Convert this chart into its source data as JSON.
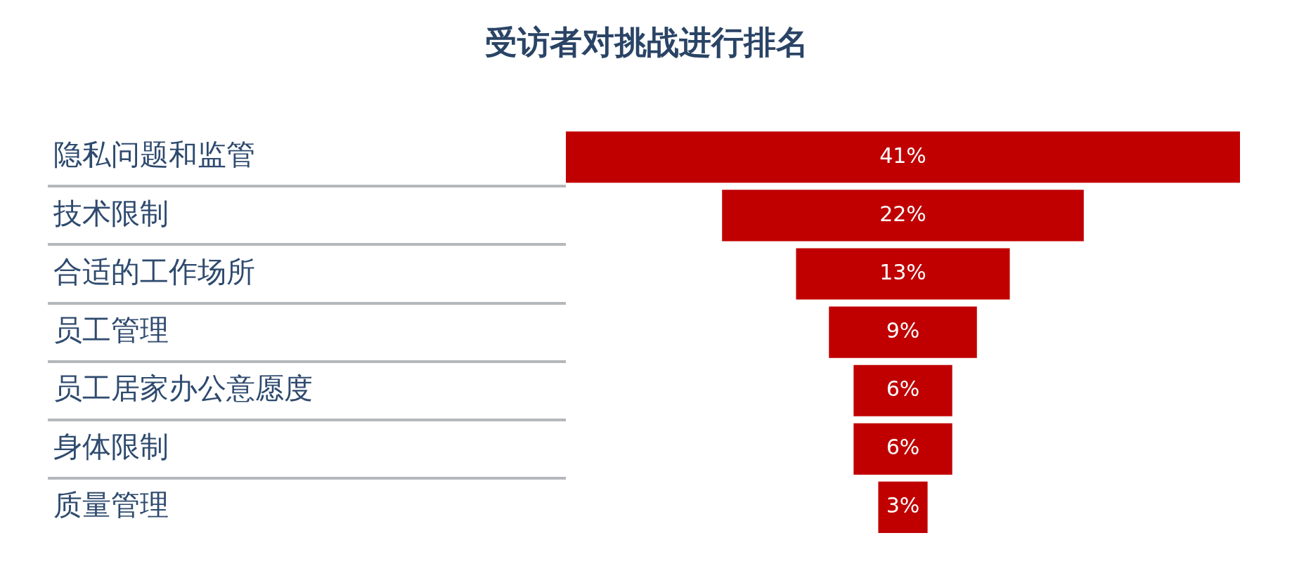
{
  "chart_data": {
    "type": "other",
    "title": "受访者对挑战进行排名",
    "categories": [
      "隐私问题和监管",
      "技术限制",
      "合适的工作场所",
      "员工管理",
      "员工居家办公意愿度",
      "身体限制",
      "质量管理"
    ],
    "values": [
      41,
      22,
      13,
      9,
      6,
      6,
      3
    ],
    "value_labels": [
      "41%",
      "22%",
      "13%",
      "9%",
      "6%",
      "6%",
      "3%"
    ],
    "color": "#c00000"
  }
}
